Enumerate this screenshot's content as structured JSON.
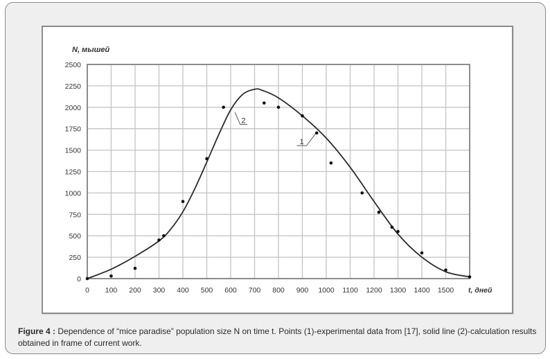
{
  "figure": {
    "caption_label": "Figure 4 :",
    "caption_text": " Dependence of “mice paradise” population size N on time t. Points (1)-experimental data from [17], solid line (2)-calculation results obtained in frame of current work."
  },
  "colors": {
    "card_bg": "#efefef",
    "grid": "#c4c4c4",
    "axis": "#8c8c8c",
    "curve": "#2b2b2b",
    "points": "#111111"
  },
  "chart_data": {
    "type": "scatter",
    "title": "",
    "xlabel": "t, дней",
    "ylabel": "N, мышей",
    "xlim": [
      0,
      1600
    ],
    "ylim": [
      0,
      2500
    ],
    "grid": true,
    "x_ticks": [
      0,
      100,
      200,
      300,
      400,
      500,
      600,
      700,
      800,
      900,
      1000,
      1100,
      1200,
      1300,
      1400,
      1500
    ],
    "y_ticks": [
      0,
      250,
      500,
      750,
      1000,
      1250,
      1500,
      1750,
      2000,
      2250,
      2500
    ],
    "annotations": [
      {
        "text": "1",
        "x": 940,
        "y": 1600,
        "target": "experimental points"
      },
      {
        "text": "2",
        "x": 645,
        "y": 1850,
        "target": "calculated curve"
      }
    ],
    "series": [
      {
        "name": "1 - experimental data [17]",
        "kind": "points",
        "x": [
          0,
          100,
          200,
          300,
          320,
          400,
          500,
          570,
          740,
          800,
          900,
          960,
          1020,
          1150,
          1220,
          1275,
          1300,
          1400,
          1500,
          1600
        ],
        "y": [
          0,
          30,
          120,
          450,
          500,
          900,
          1400,
          2000,
          2050,
          2000,
          1900,
          1700,
          1350,
          1000,
          775,
          600,
          550,
          300,
          100,
          20
        ]
      },
      {
        "name": "2 - calculation results",
        "kind": "line",
        "x": [
          0,
          100,
          200,
          300,
          350,
          400,
          450,
          500,
          550,
          600,
          650,
          700,
          730,
          800,
          900,
          1000,
          1100,
          1200,
          1300,
          1400,
          1500,
          1600
        ],
        "y": [
          0,
          110,
          260,
          440,
          580,
          780,
          1050,
          1360,
          1680,
          1970,
          2150,
          2210,
          2200,
          2110,
          1900,
          1640,
          1300,
          900,
          520,
          250,
          80,
          20
        ]
      }
    ]
  }
}
